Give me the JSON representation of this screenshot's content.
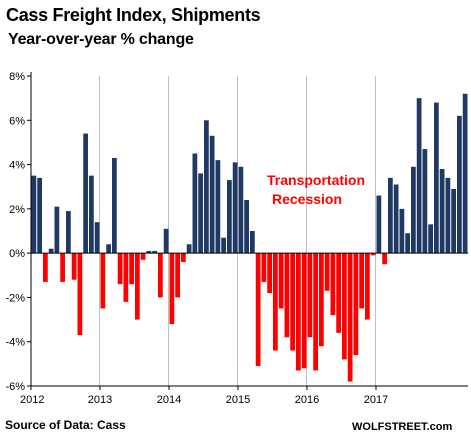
{
  "header": {
    "title": "Cass Freight Index,  Shipments",
    "subtitle": "Year-over-year % change"
  },
  "footer": {
    "source": "Source of Data: Cass",
    "watermark": "WOLFSTREET.com"
  },
  "chart_data": {
    "type": "bar",
    "title": "Cass Freight Index,  Shipments",
    "subtitle": "Year-over-year % change",
    "xlabel": "",
    "ylabel": "",
    "ylim": [
      -6,
      8
    ],
    "y_ticks": [
      -6,
      -4,
      -2,
      0,
      2,
      4,
      6,
      8
    ],
    "y_tick_labels": [
      "-6%",
      "-4%",
      "-2%",
      "0%",
      "2%",
      "4%",
      "6%",
      "8%"
    ],
    "x_tick_labels": [
      "2012",
      "2013",
      "2014",
      "2015",
      "2016",
      "2017"
    ],
    "x_tick_start_index": [
      0,
      12,
      24,
      36,
      48,
      60
    ],
    "grid": "vertical at year boundaries",
    "colors": {
      "positive": "#1f3864",
      "negative": "#ff0000",
      "annotation": "#ff0000",
      "axis": "#000000"
    },
    "annotation": {
      "line1": "Transportation",
      "line2": "Recession"
    },
    "values": [
      3.5,
      3.4,
      -1.3,
      0.2,
      2.1,
      -1.3,
      1.9,
      -1.2,
      -3.7,
      5.4,
      3.5,
      1.4,
      -2.5,
      0.4,
      4.3,
      -1.4,
      -2.2,
      -1.4,
      -3.0,
      -0.3,
      0.1,
      0.1,
      -2.0,
      1.1,
      -3.2,
      -2.0,
      -0.4,
      0.4,
      4.5,
      3.6,
      6.0,
      5.3,
      4.2,
      0.7,
      3.3,
      4.1,
      3.9,
      2.4,
      1.0,
      -5.1,
      -1.3,
      -1.8,
      -4.4,
      -2.5,
      -3.8,
      -4.4,
      -5.3,
      -5.2,
      -3.8,
      -5.3,
      -4.2,
      -1.7,
      -2.8,
      -3.6,
      -4.8,
      -5.8,
      -4.6,
      -2.5,
      -3.0,
      -0.1,
      2.6,
      -0.5,
      3.4,
      3.1,
      2.0,
      0.9,
      3.9,
      7.0,
      4.7,
      1.3,
      6.8,
      3.8,
      3.4,
      2.9,
      6.2,
      7.2
    ]
  }
}
